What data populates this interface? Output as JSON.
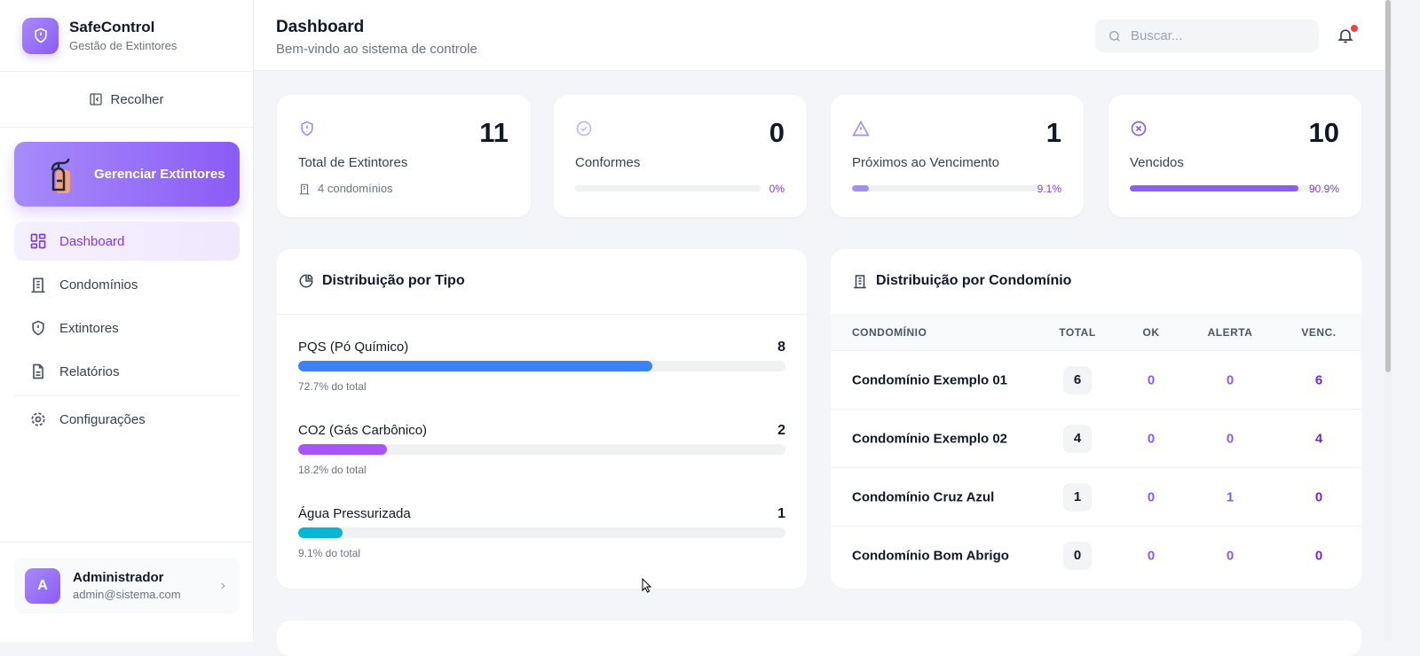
{
  "brand": {
    "title": "SafeControl",
    "subtitle": "Gestão de Extintores"
  },
  "sidebar": {
    "collapse": "Recolher",
    "manage": "Gerenciar Extintores",
    "items": [
      {
        "label": "Dashboard"
      },
      {
        "label": "Condomínios"
      },
      {
        "label": "Extintores"
      },
      {
        "label": "Relatórios"
      },
      {
        "label": "Configurações"
      }
    ],
    "user": {
      "initial": "A",
      "name": "Administrador",
      "email": "admin@sistema.com"
    }
  },
  "header": {
    "title": "Dashboard",
    "subtitle": "Bem-vindo ao sistema de controle",
    "search_placeholder": "Buscar..."
  },
  "stats": [
    {
      "label": "Total de Extintores",
      "value": "11",
      "sub": "4 condomínios"
    },
    {
      "label": "Conformes",
      "value": "0",
      "percent": "0%",
      "fraction": 0
    },
    {
      "label": "Próximos ao Vencimento",
      "value": "1",
      "percent": "9.1%",
      "fraction": 0.091
    },
    {
      "label": "Vencidos",
      "value": "10",
      "percent": "90.9%",
      "fraction": 0.909
    }
  ],
  "types": {
    "title": "Distribuição por Tipo",
    "items": [
      {
        "name": "PQS (Pó Químico)",
        "count": "8",
        "percent": "72.7% do total",
        "fraction": 0.727,
        "color": "#3b82f6"
      },
      {
        "name": "CO2 (Gás Carbônico)",
        "count": "2",
        "percent": "18.2% do total",
        "fraction": 0.182,
        "color": "#a855f7"
      },
      {
        "name": "Água Pressurizada",
        "count": "1",
        "percent": "9.1% do total",
        "fraction": 0.091,
        "color": "#06b6d4"
      }
    ]
  },
  "condos": {
    "title": "Distribuição por Condomínio",
    "headers": [
      "CONDOMÍNIO",
      "TOTAL",
      "OK",
      "ALERTA",
      "VENC."
    ],
    "rows": [
      [
        "Condomínio Exemplo 01",
        "6",
        "0",
        "0",
        "6"
      ],
      [
        "Condomínio Exemplo 02",
        "4",
        "0",
        "0",
        "4"
      ],
      [
        "Condomínio Cruz Azul",
        "1",
        "0",
        "1",
        "0"
      ],
      [
        "Condomínio Bom Abrigo",
        "0",
        "0",
        "0",
        "0"
      ]
    ]
  }
}
